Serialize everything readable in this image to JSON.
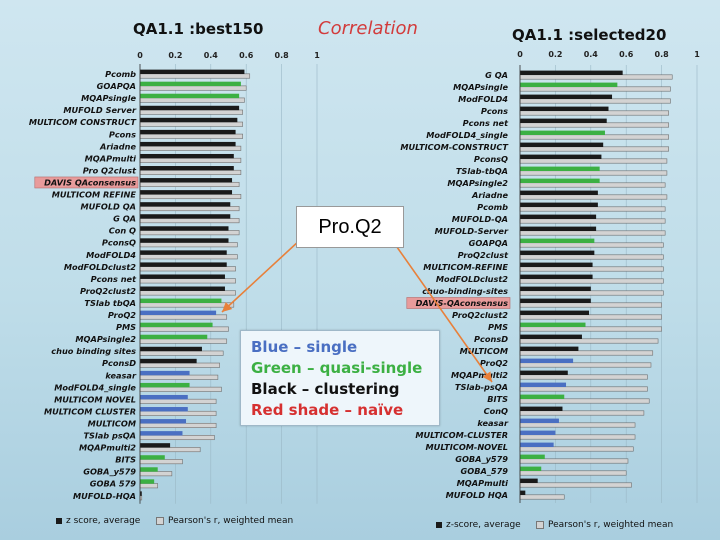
{
  "headers": {
    "left_title": "QA1.1 :best150",
    "center_title": "Correlation",
    "right_title": "QA1.1 :selected20"
  },
  "legend_box": {
    "line1": "Blue – single",
    "line2": "Green – quasi-single",
    "line3": "Black – clustering",
    "line4": "Red shade – naïve"
  },
  "callout": "Pro.Q2",
  "colors": {
    "blue": "#4a6fc2",
    "green": "#3cb043",
    "black": "#1a1a1a",
    "gray": "#d3d3d3",
    "red_shade": "#e89b9b",
    "arrow": "#e8803a"
  },
  "footer": {
    "left_zscore": "z score, average",
    "left_pearson": "Pearson's r, weighted mean",
    "right_zscore": "z-score, average",
    "right_pearson": "Pearson's r, weighted mean"
  },
  "chart_data": [
    {
      "type": "bar",
      "title": "QA1.1 :best150",
      "xlim": [
        0,
        1
      ],
      "xticks": [
        "0",
        "0.2",
        "0.4",
        "0.6",
        "0.8",
        "1"
      ],
      "orientation": "horizontal",
      "series": [
        {
          "name": "z score, average"
        },
        {
          "name": "Pearson's r, weighted mean"
        }
      ],
      "categories": [
        {
          "label": "Pcomb",
          "cls": "black",
          "z": 0.59,
          "r": 0.62
        },
        {
          "label": "GOAPQA",
          "cls": "green",
          "z": 0.57,
          "r": 0.6
        },
        {
          "label": "MQAPsingle",
          "cls": "green",
          "z": 0.56,
          "r": 0.59
        },
        {
          "label": "MUFOLD Server",
          "cls": "black",
          "z": 0.56,
          "r": 0.58
        },
        {
          "label": "MULTICOM CONSTRUCT",
          "cls": "black",
          "z": 0.55,
          "r": 0.58
        },
        {
          "label": "Pcons",
          "cls": "black",
          "z": 0.54,
          "r": 0.58
        },
        {
          "label": "Ariadne",
          "cls": "black",
          "z": 0.54,
          "r": 0.57
        },
        {
          "label": "MQAPmulti",
          "cls": "black",
          "z": 0.53,
          "r": 0.57
        },
        {
          "label": "Pro Q2clust",
          "cls": "black",
          "z": 0.53,
          "r": 0.57
        },
        {
          "label": "DAVIS QAconsensus",
          "cls": "red",
          "z": 0.52,
          "r": 0.56
        },
        {
          "label": "MULTICOM REFINE",
          "cls": "black",
          "z": 0.52,
          "r": 0.57
        },
        {
          "label": "MUFOLD QA",
          "cls": "black",
          "z": 0.51,
          "r": 0.56
        },
        {
          "label": "G QA",
          "cls": "black",
          "z": 0.51,
          "r": 0.56
        },
        {
          "label": "Con Q",
          "cls": "black",
          "z": 0.5,
          "r": 0.56
        },
        {
          "label": "PconsQ",
          "cls": "black",
          "z": 0.5,
          "r": 0.55
        },
        {
          "label": "ModFOLD4",
          "cls": "black",
          "z": 0.49,
          "r": 0.55
        },
        {
          "label": "ModFOLDclust2",
          "cls": "black",
          "z": 0.49,
          "r": 0.54
        },
        {
          "label": "Pcons net",
          "cls": "black",
          "z": 0.48,
          "r": 0.54
        },
        {
          "label": "ProQ2clust2",
          "cls": "black",
          "z": 0.48,
          "r": 0.54
        },
        {
          "label": "TSlab tbQA",
          "cls": "green",
          "z": 0.46,
          "r": 0.53
        },
        {
          "label": "ProQ2",
          "cls": "blue",
          "z": 0.43,
          "r": 0.49
        },
        {
          "label": "PMS",
          "cls": "green",
          "z": 0.41,
          "r": 0.5
        },
        {
          "label": "MQAPsingle2",
          "cls": "green",
          "z": 0.38,
          "r": 0.49
        },
        {
          "label": "chuo binding sites",
          "cls": "black",
          "z": 0.35,
          "r": 0.47
        },
        {
          "label": "PconsD",
          "cls": "black",
          "z": 0.32,
          "r": 0.45
        },
        {
          "label": "keasar",
          "cls": "blue",
          "z": 0.28,
          "r": 0.44
        },
        {
          "label": "ModFOLD4_single",
          "cls": "green",
          "z": 0.28,
          "r": 0.46
        },
        {
          "label": "MULTICOM NOVEL",
          "cls": "blue",
          "z": 0.27,
          "r": 0.43
        },
        {
          "label": "MULTICOM CLUSTER",
          "cls": "blue",
          "z": 0.27,
          "r": 0.43
        },
        {
          "label": "MULTICOM",
          "cls": "blue",
          "z": 0.26,
          "r": 0.43
        },
        {
          "label": "TSlab psQA",
          "cls": "blue",
          "z": 0.24,
          "r": 0.42
        },
        {
          "label": "MQAPmulti2",
          "cls": "black",
          "z": 0.17,
          "r": 0.34
        },
        {
          "label": "BITS",
          "cls": "green",
          "z": 0.14,
          "r": 0.24
        },
        {
          "label": "GOBA_y579",
          "cls": "green",
          "z": 0.1,
          "r": 0.18
        },
        {
          "label": "GOBA 579",
          "cls": "green",
          "z": 0.08,
          "r": 0.1
        },
        {
          "label": "MUFOLD-HQA",
          "cls": "black",
          "z": 0.01,
          "r": 0.01
        }
      ]
    },
    {
      "type": "bar",
      "title": "QA1.1 :selected20",
      "xlim": [
        0,
        1
      ],
      "xticks": [
        "0",
        "0.2",
        "0.4",
        "0.6",
        "0.8",
        "1"
      ],
      "orientation": "horizontal",
      "series": [
        {
          "name": "z-score, average"
        },
        {
          "name": "Pearson's r, weighted mean"
        }
      ],
      "categories": [
        {
          "label": "G QA",
          "cls": "black",
          "z": 0.58,
          "r": 0.86
        },
        {
          "label": "MQAPsingle",
          "cls": "green",
          "z": 0.55,
          "r": 0.85
        },
        {
          "label": "ModFOLD4",
          "cls": "black",
          "z": 0.52,
          "r": 0.85
        },
        {
          "label": "Pcons",
          "cls": "black",
          "z": 0.5,
          "r": 0.84
        },
        {
          "label": "Pcons net",
          "cls": "black",
          "z": 0.49,
          "r": 0.84
        },
        {
          "label": "ModFOLD4_single",
          "cls": "green",
          "z": 0.48,
          "r": 0.84
        },
        {
          "label": "MULTICOM-CONSTRUCT",
          "cls": "black",
          "z": 0.47,
          "r": 0.84
        },
        {
          "label": "PconsQ",
          "cls": "black",
          "z": 0.46,
          "r": 0.83
        },
        {
          "label": "TSlab-tbQA",
          "cls": "green",
          "z": 0.45,
          "r": 0.83
        },
        {
          "label": "MQAPsingle2",
          "cls": "green",
          "z": 0.45,
          "r": 0.82
        },
        {
          "label": "Ariadne",
          "cls": "black",
          "z": 0.44,
          "r": 0.83
        },
        {
          "label": "Pcomb",
          "cls": "black",
          "z": 0.44,
          "r": 0.82
        },
        {
          "label": "MUFOLD-QA",
          "cls": "black",
          "z": 0.43,
          "r": 0.82
        },
        {
          "label": "MUFOLD-Server",
          "cls": "black",
          "z": 0.43,
          "r": 0.82
        },
        {
          "label": "GOAPQA",
          "cls": "green",
          "z": 0.42,
          "r": 0.81
        },
        {
          "label": "ProQ2clust",
          "cls": "black",
          "z": 0.42,
          "r": 0.81
        },
        {
          "label": "MULTICOM-REFINE",
          "cls": "black",
          "z": 0.41,
          "r": 0.81
        },
        {
          "label": "ModFOLDclust2",
          "cls": "black",
          "z": 0.41,
          "r": 0.81
        },
        {
          "label": "chuo-binding-sites",
          "cls": "black",
          "z": 0.4,
          "r": 0.81
        },
        {
          "label": "DAVIS-QAconsensus",
          "cls": "red",
          "z": 0.4,
          "r": 0.8
        },
        {
          "label": "ProQ2clust2",
          "cls": "black",
          "z": 0.39,
          "r": 0.8
        },
        {
          "label": "PMS",
          "cls": "green",
          "z": 0.37,
          "r": 0.8
        },
        {
          "label": "PconsD",
          "cls": "black",
          "z": 0.35,
          "r": 0.78
        },
        {
          "label": "MULTICOM",
          "cls": "black",
          "z": 0.33,
          "r": 0.75
        },
        {
          "label": "ProQ2",
          "cls": "blue",
          "z": 0.3,
          "r": 0.74
        },
        {
          "label": "MQAPmulti2",
          "cls": "black",
          "z": 0.27,
          "r": 0.72
        },
        {
          "label": "TSlab-psQA",
          "cls": "blue",
          "z": 0.26,
          "r": 0.72
        },
        {
          "label": "BITS",
          "cls": "green",
          "z": 0.25,
          "r": 0.73
        },
        {
          "label": "ConQ",
          "cls": "black",
          "z": 0.24,
          "r": 0.7
        },
        {
          "label": "keasar",
          "cls": "blue",
          "z": 0.22,
          "r": 0.65
        },
        {
          "label": "MULTICOM-CLUSTER",
          "cls": "blue",
          "z": 0.2,
          "r": 0.65
        },
        {
          "label": "MULTICOM-NOVEL",
          "cls": "blue",
          "z": 0.19,
          "r": 0.64
        },
        {
          "label": "GOBA_y579",
          "cls": "green",
          "z": 0.14,
          "r": 0.61
        },
        {
          "label": "GOBA_579",
          "cls": "green",
          "z": 0.12,
          "r": 0.6
        },
        {
          "label": "MQAPmulti",
          "cls": "black",
          "z": 0.1,
          "r": 0.63
        },
        {
          "label": "MUFOLD HQA",
          "cls": "black",
          "z": 0.03,
          "r": 0.25
        }
      ]
    }
  ]
}
